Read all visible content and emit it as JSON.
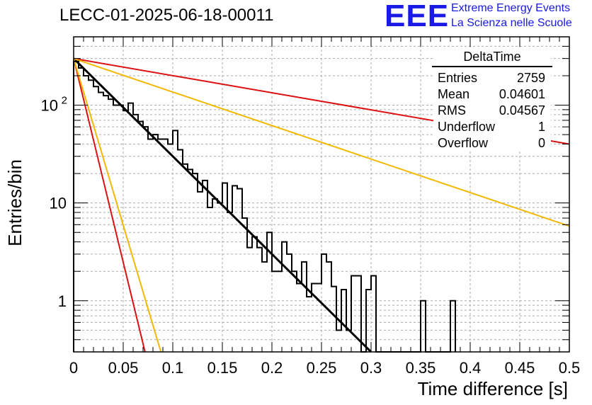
{
  "title": "LECC-01-2025-06-18-00011",
  "logo": {
    "text": "EEE",
    "line1": "Extreme Energy Events",
    "line2": "La Scienza nelle Scuole",
    "color": "#1a1ae6"
  },
  "stats": {
    "title": "DeltaTime",
    "rows": [
      {
        "label": "Entries",
        "value": "2759"
      },
      {
        "label": "Mean",
        "value": "0.04601"
      },
      {
        "label": "RMS",
        "value": "0.04567"
      },
      {
        "label": "Underflow",
        "value": "1"
      },
      {
        "label": "Overflow",
        "value": "0"
      }
    ]
  },
  "chart_data": {
    "type": "line",
    "xlabel": "Time difference [s]",
    "ylabel": "Entries/bin",
    "log_y": true,
    "xlim": [
      0,
      0.5
    ],
    "ylim": [
      0.3,
      500
    ],
    "grid": true,
    "x_ticks": [
      "0",
      "0.05",
      "0.1",
      "0.15",
      "0.2",
      "0.25",
      "0.3",
      "0.35",
      "0.4",
      "0.45",
      "0.5"
    ],
    "y_ticks": [
      {
        "value": 1,
        "label": "1"
      },
      {
        "value": 10,
        "label": "10"
      },
      {
        "value": 100,
        "label": "10",
        "exp": "2"
      }
    ],
    "histogram": {
      "bin_width": 0.005,
      "counts": [
        280,
        240,
        200,
        180,
        155,
        135,
        125,
        115,
        100,
        100,
        88,
        105,
        80,
        68,
        60,
        45,
        50,
        45,
        45,
        40,
        55,
        35,
        25,
        22,
        20,
        13,
        17,
        9,
        11,
        10,
        16,
        8,
        15,
        14,
        7,
        3.5,
        4.5,
        3.5,
        2.5,
        5,
        2,
        2,
        4,
        3,
        2,
        1.5,
        2.5,
        1.1,
        1.5,
        1.5,
        3,
        2.5,
        1.4,
        0.5,
        1.3,
        0.5,
        1.8,
        1.8,
        0.3,
        1.3,
        1.8,
        0.3,
        0.3,
        0.3,
        0.3,
        0.3,
        0.3,
        0.3,
        0.3,
        0.3,
        1.0,
        0.3,
        0.3,
        0.3,
        0.3,
        0.3,
        1.0
      ],
      "color": "#000000"
    },
    "lines": [
      {
        "points": [
          [
            0,
            300
          ],
          [
            0.3,
            0.3
          ]
        ],
        "color": "#000000",
        "width": 3
      },
      {
        "points": [
          [
            0,
            300
          ],
          [
            0.5,
            40
          ]
        ],
        "color": "#dd1111",
        "width": 2
      },
      {
        "points": [
          [
            0,
            300
          ],
          [
            0.5,
            5.8
          ]
        ],
        "color": "#f5b800",
        "width": 2
      },
      {
        "points": [
          [
            0,
            300
          ],
          [
            0.072,
            0.3
          ]
        ],
        "color": "#dd1111",
        "width": 2
      },
      {
        "points": [
          [
            0,
            300
          ],
          [
            0.088,
            0.3
          ]
        ],
        "color": "#f5b800",
        "width": 2
      }
    ]
  }
}
